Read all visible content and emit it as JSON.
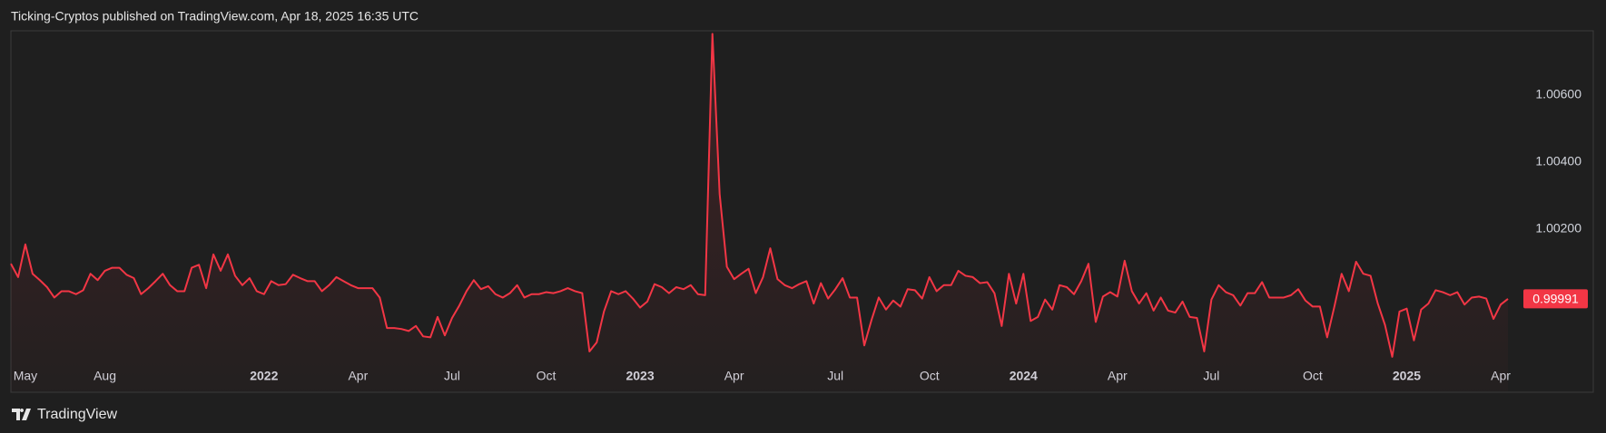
{
  "header": {
    "text": "Ticking-Cryptos published on TradingView.com, Apr 18, 2025 16:35 UTC"
  },
  "footer": {
    "brand": "TradingView"
  },
  "chart_data": {
    "type": "line",
    "color": "#f23645",
    "ylim": [
      0.998,
      1.00792
    ],
    "yticks": [
      {
        "value": 1.002,
        "label": "1.00200"
      },
      {
        "value": 1.004,
        "label": "1.00400"
      },
      {
        "value": 1.006,
        "label": "1.00600"
      }
    ],
    "categories": [
      null,
      null,
      "May",
      null,
      null,
      null,
      null,
      null,
      null,
      null,
      null,
      null,
      null,
      "Aug",
      null,
      null,
      null,
      null,
      null,
      null,
      null,
      null,
      null,
      null,
      null,
      null,
      null,
      null,
      null,
      null,
      null,
      null,
      null,
      null,
      null,
      "2022",
      null,
      null,
      null,
      null,
      null,
      null,
      null,
      null,
      null,
      null,
      null,
      null,
      "Apr",
      null,
      null,
      null,
      null,
      null,
      null,
      null,
      null,
      null,
      null,
      null,
      null,
      "Jul",
      null,
      null,
      null,
      null,
      null,
      null,
      null,
      null,
      null,
      null,
      null,
      null,
      "Oct",
      null,
      null,
      null,
      null,
      null,
      null,
      null,
      null,
      null,
      null,
      null,
      null,
      "2023",
      null,
      null,
      null,
      null,
      null,
      null,
      null,
      null,
      null,
      null,
      null,
      null,
      "Apr",
      null,
      null,
      null,
      null,
      null,
      null,
      null,
      null,
      null,
      null,
      null,
      null,
      null,
      "Jul",
      null,
      null,
      null,
      null,
      null,
      null,
      null,
      null,
      null,
      null,
      null,
      null,
      "Oct",
      null,
      null,
      null,
      null,
      null,
      null,
      null,
      null,
      null,
      null,
      null,
      null,
      "2024",
      null,
      null,
      null,
      null,
      null,
      null,
      null,
      null,
      null,
      null,
      null,
      null,
      "Apr",
      null,
      null,
      null,
      null,
      null,
      null,
      null,
      null,
      null,
      null,
      null,
      null,
      "Jul",
      null,
      null,
      null,
      null,
      null,
      null,
      null,
      null,
      null,
      null,
      null,
      null,
      null,
      "Oct",
      null,
      null,
      null,
      null,
      null,
      null,
      null,
      null,
      null,
      null,
      null,
      null,
      "2025",
      null,
      null,
      null,
      null,
      null,
      null,
      null,
      null,
      null,
      null,
      null,
      null,
      "Apr",
      null
    ],
    "values": [
      1.00096,
      1.00056,
      1.00154,
      1.00066,
      1.00047,
      1.00026,
      0.99995,
      1.00014,
      1.00014,
      1.00005,
      1.00017,
      1.00066,
      1.00047,
      1.00075,
      1.00084,
      1.00084,
      1.00063,
      1.00053,
      1.00005,
      1.00023,
      1.00044,
      1.00066,
      1.00032,
      1.00014,
      1.00014,
      1.00084,
      1.00093,
      1.00023,
      1.00124,
      1.00075,
      1.00124,
      1.0006,
      1.00032,
      1.00053,
      1.00014,
      1.00005,
      1.00044,
      1.00032,
      1.00035,
      1.00063,
      1.00053,
      1.00044,
      1.00044,
      1.00014,
      1.00032,
      1.00056,
      1.00044,
      1.00032,
      1.00023,
      1.00023,
      1.00023,
      0.99995,
      0.99904,
      0.99904,
      0.99901,
      0.99895,
      0.9991,
      0.99879,
      0.99876,
      0.99937,
      0.99882,
      0.99934,
      0.99971,
      1.00014,
      1.00047,
      1.0002,
      1.00029,
      1.00005,
      0.99995,
      1.00008,
      1.00032,
      0.99995,
      1.00005,
      1.00005,
      1.00011,
      1.00008,
      1.00014,
      1.00023,
      1.00014,
      1.00008,
      0.99834,
      0.99861,
      0.99953,
      1.00014,
      1.00005,
      1.00014,
      0.99992,
      0.99965,
      0.99983,
      1.00035,
      1.00026,
      1.00008,
      1.00026,
      1.0002,
      1.00032,
      1.00005,
      1.00002,
      1.00783,
      1.00304,
      1.00087,
      1.0005,
      1.00066,
      1.00081,
      1.00008,
      1.00056,
      1.00142,
      1.0005,
      1.00032,
      1.00023,
      1.00035,
      1.00044,
      0.99977,
      1.00038,
      0.99992,
      1.0002,
      1.00053,
      0.99995,
      0.99995,
      0.99852,
      0.99928,
      0.99995,
      0.99959,
      0.99986,
      0.99968,
      1.0002,
      1.00017,
      0.99992,
      1.00056,
      1.00014,
      1.00032,
      1.00032,
      1.00075,
      1.0006,
      1.00056,
      1.00038,
      1.00041,
      1.00008,
      0.9991,
      1.00066,
      0.99977,
      1.00066,
      0.99925,
      0.99937,
      0.99989,
      0.99959,
      1.00032,
      1.00026,
      1.00005,
      1.00044,
      1.00096,
      0.99922,
      0.99998,
      1.00011,
      0.99998,
      1.00105,
      1.00014,
      0.99977,
      1.00008,
      0.99956,
      0.99995,
      0.99956,
      0.9995,
      0.99983,
      0.99937,
      0.99934,
      0.99834,
      0.99989,
      1.00032,
      1.00011,
      1.00002,
      0.99971,
      1.00008,
      1.00008,
      1.00041,
      0.99995,
      0.99995,
      0.99995,
      1.00002,
      1.0002,
      0.99986,
      0.99968,
      0.99968,
      0.99876,
      0.99968,
      1.00066,
      1.00014,
      1.00102,
      1.00066,
      1.0006,
      0.99977,
      0.99913,
      0.99818,
      0.99953,
      0.99962,
      0.99867,
      0.99959,
      0.99977,
      1.00017,
      1.00011,
      1.00002,
      1.00011,
      0.99974,
      0.99995,
      0.99998,
      0.99992,
      0.99931,
      0.99974,
      0.99991
    ]
  }
}
